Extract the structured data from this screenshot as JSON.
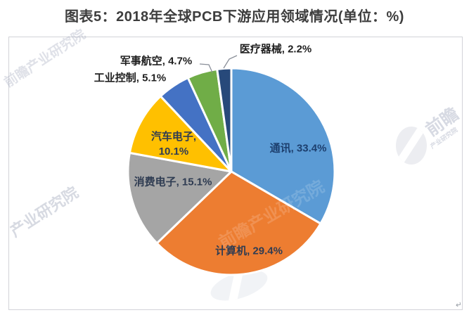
{
  "chart_data": {
    "type": "pie",
    "title": "图表5：2018年全球PCB下游应用领域情况(单位：%)",
    "unit": "%",
    "start_angle_deg": 0,
    "direction": "clockwise",
    "legend": "none",
    "label_format": "category, percent",
    "slices": [
      {
        "name": "通讯",
        "value": 33.4,
        "label": "通讯, 33.4%",
        "color": "#5B9BD5",
        "label_placement": "inside"
      },
      {
        "name": "计算机",
        "value": 29.4,
        "label": "计算机, 29.4%",
        "color": "#ED7D31",
        "label_placement": "inside"
      },
      {
        "name": "消费电子",
        "value": 15.1,
        "label": "消费电子, 15.1%",
        "color": "#A5A5A5",
        "label_placement": "inside"
      },
      {
        "name": "汽车电子",
        "value": 10.1,
        "label": "汽车电子, 10.1%",
        "color": "#FFC000",
        "label_placement": "inside"
      },
      {
        "name": "工业控制",
        "value": 5.1,
        "label": "工业控制, 5.1%",
        "color": "#4472C4",
        "label_placement": "outside"
      },
      {
        "name": "军事航空",
        "value": 4.7,
        "label": "军事航空, 4.7%",
        "color": "#70AD47",
        "label_placement": "outside-with-leader"
      },
      {
        "name": "医疗器械",
        "value": 2.2,
        "label": "医疗器械, 2.2%",
        "color": "#27497A",
        "label_placement": "outside-with-leader"
      }
    ]
  },
  "watermarks": {
    "top_left": "前瞻产业研究院",
    "bottom_left": "产业研究院",
    "pie_overlay": "前瞻产业研究院",
    "right_logo_main": "前瞻",
    "right_logo_sub": "产业研究院"
  },
  "decorations": {
    "corner_mark": "↵"
  },
  "style": {
    "slice_border_color": "#ffffff",
    "leader_line_color": "#8a8f99",
    "frame_border_color": "#d2d3d8",
    "title_color": "#3d3d3d"
  }
}
